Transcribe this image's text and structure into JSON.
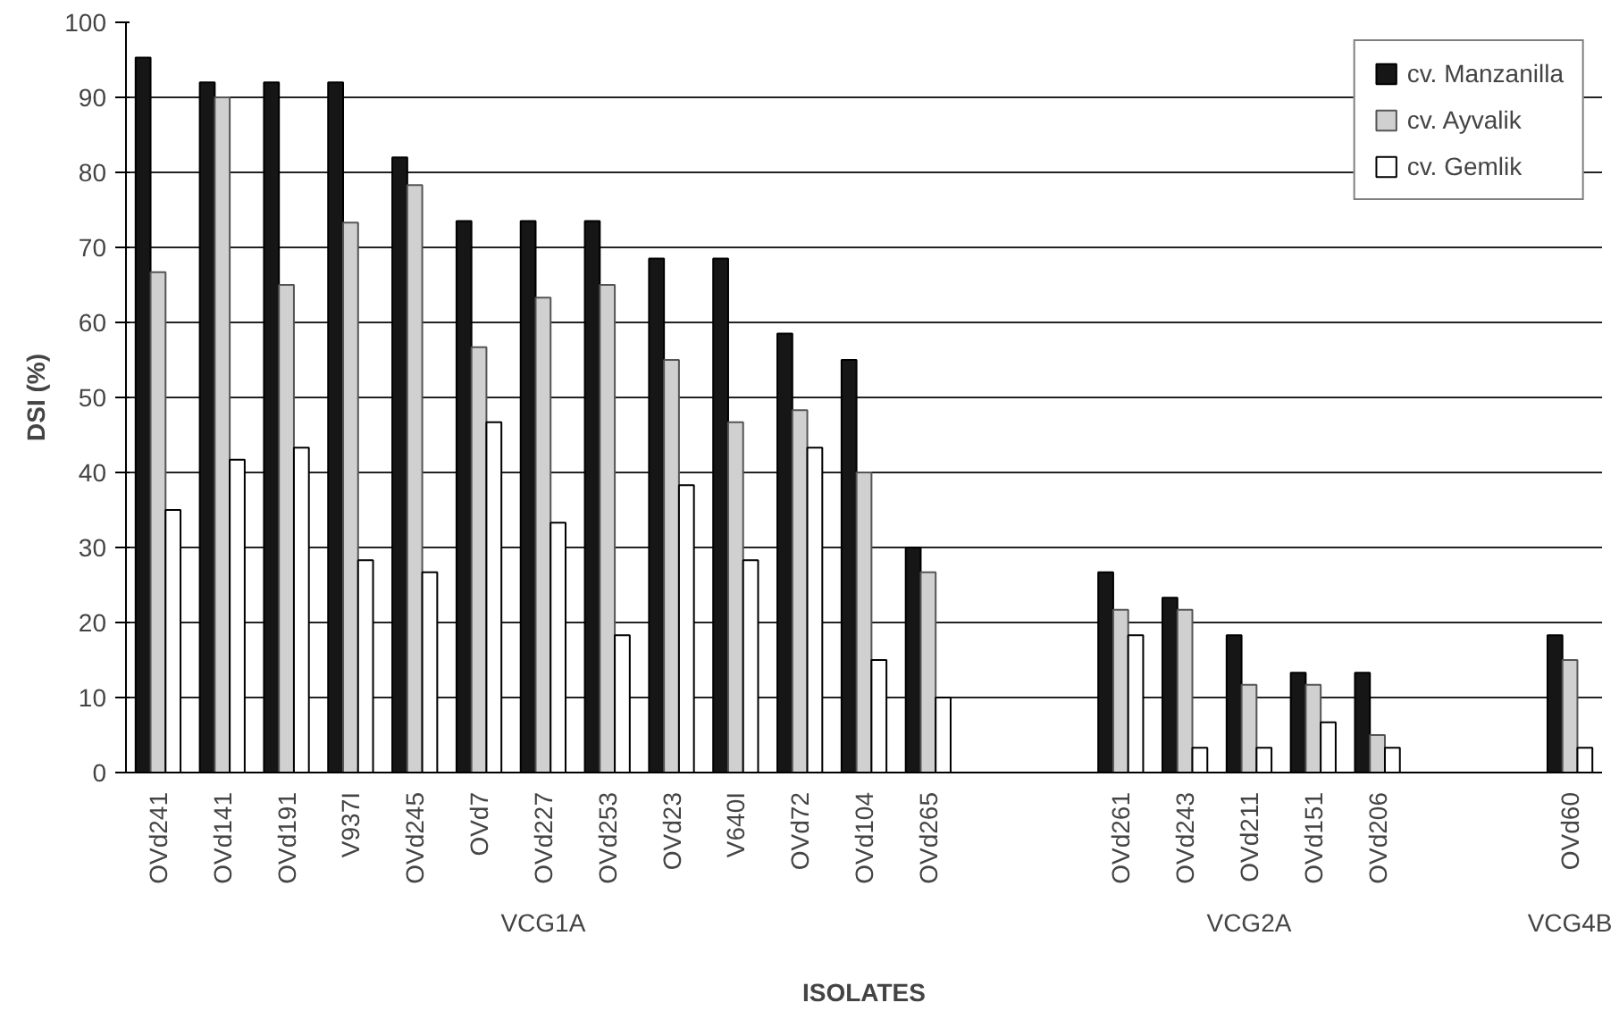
{
  "chart_data": {
    "type": "bar",
    "xlabel": "ISOLATES",
    "ylabel": "DSI (%)",
    "categories": [
      "OVd241",
      "OVd141",
      "OVd191",
      "V937I",
      "OVd245",
      "OVd7",
      "OVd227",
      "OVd253",
      "OVd23",
      "V640I",
      "OVd72",
      "OVd104",
      "OVd265",
      null,
      null,
      "OVd261",
      "OVd243",
      "OVd211",
      "OVd151",
      "OVd206",
      null,
      null,
      "OVd60"
    ],
    "series": [
      {
        "name": "cv. Manzanilla",
        "color": "#161616",
        "values": [
          95.3,
          92,
          92,
          92,
          82,
          73.5,
          73.5,
          73.5,
          68.5,
          68.5,
          58.5,
          55,
          30,
          null,
          null,
          26.7,
          23.3,
          18.3,
          13.3,
          13.3,
          null,
          null,
          18.3
        ]
      },
      {
        "name": "cv. Ayvalik",
        "color": "#d0d0d0",
        "values": [
          66.7,
          90,
          65,
          73.3,
          78.3,
          56.7,
          63.3,
          65,
          55,
          46.7,
          48.3,
          40,
          26.7,
          null,
          null,
          21.7,
          21.7,
          11.7,
          11.7,
          5,
          null,
          null,
          15
        ]
      },
      {
        "name": "cv. Gemlik",
        "color": "#ffffff",
        "values": [
          35,
          41.7,
          43.3,
          28.3,
          26.7,
          46.7,
          33.3,
          18.3,
          38.3,
          28.3,
          43.3,
          15,
          10,
          null,
          null,
          18.3,
          3.3,
          3.3,
          6.7,
          3.3,
          null,
          null,
          3.3
        ]
      }
    ],
    "annotations": [
      "VCG1A",
      "VCG2A",
      "VCG4B"
    ],
    "ylim": [
      0,
      100
    ],
    "yticks": [
      0,
      10,
      20,
      30,
      40,
      50,
      60,
      70,
      80,
      90,
      100
    ],
    "grid": "y",
    "legend": "top right"
  }
}
